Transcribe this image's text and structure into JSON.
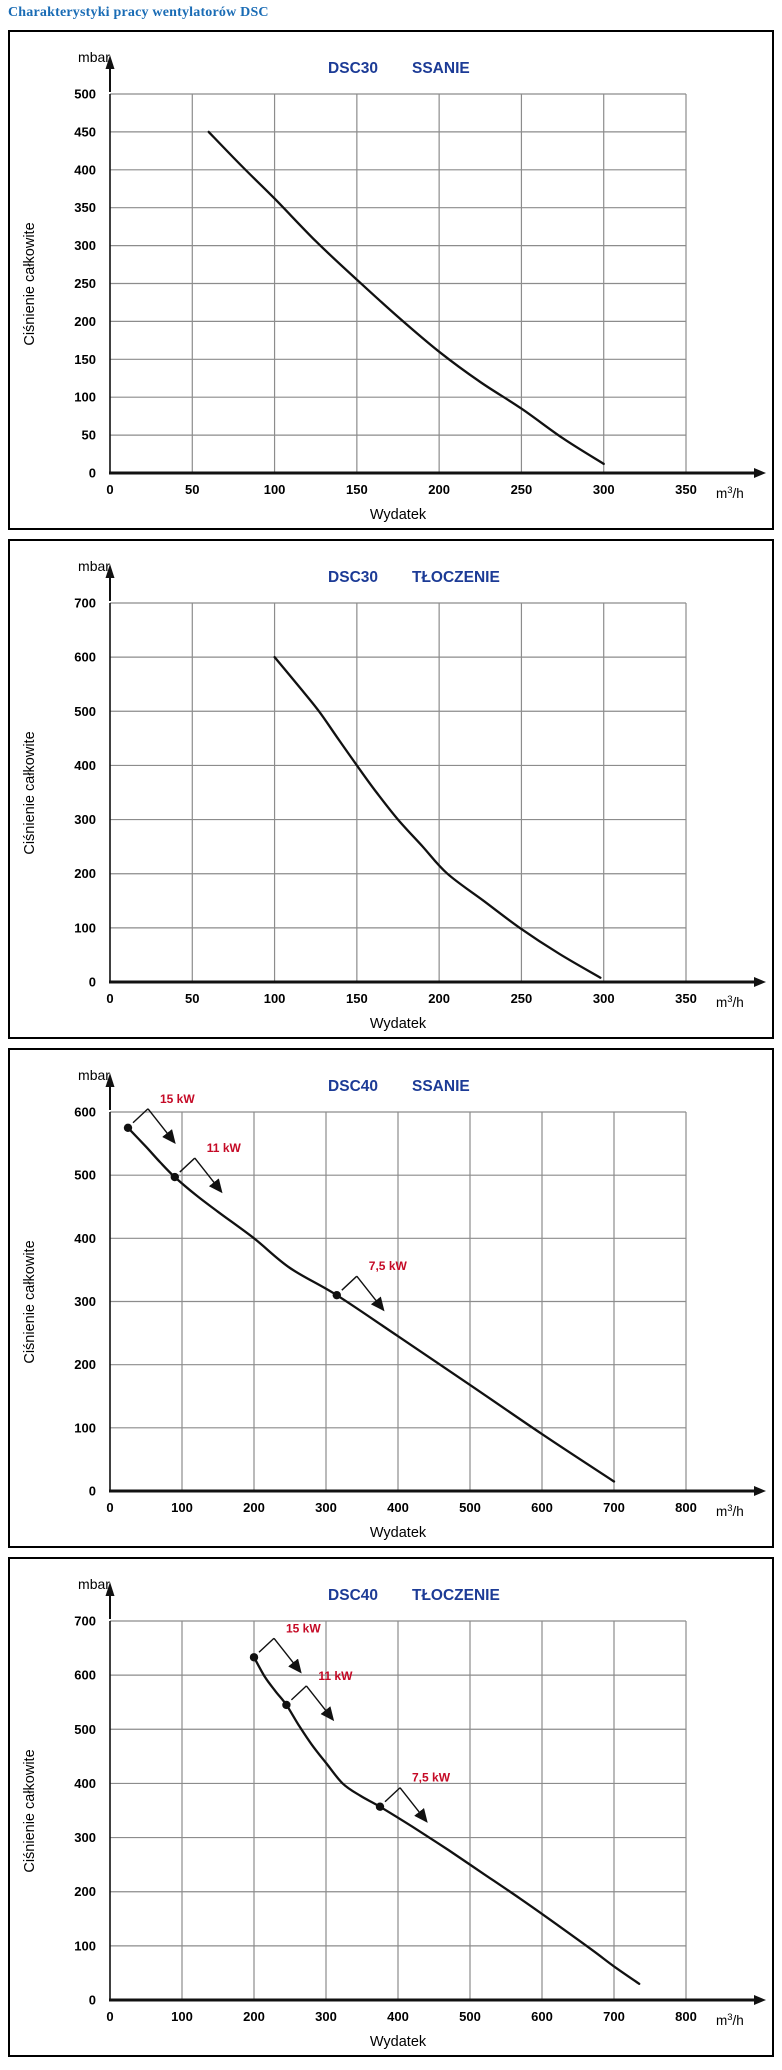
{
  "page_title": "Charakterystyki pracy wentylatorów DSC",
  "colors": {
    "page_title": "#1a6cb5",
    "chart_title": "#1c3b96",
    "annotation_label": "#c50a26",
    "grid": "#8c8c8c",
    "axis": "#111111",
    "curve": "#111111"
  },
  "chart_data": [
    {
      "type": "line",
      "model": "DSC30",
      "mode": "SSANIE",
      "y_unit": "mbar",
      "x_unit": "m³/h",
      "xlabel": "Wydatek",
      "ylabel": "Ciśnienie całkowite",
      "grid": true,
      "legend": "none",
      "xlim": [
        0,
        350
      ],
      "ylim": [
        0,
        500
      ],
      "x_ticks": [
        0,
        50,
        100,
        150,
        200,
        250,
        300,
        350
      ],
      "y_ticks": [
        0,
        50,
        100,
        150,
        200,
        250,
        300,
        350,
        400,
        450,
        500
      ],
      "curve": [
        [
          60,
          450
        ],
        [
          80,
          405
        ],
        [
          100,
          362
        ],
        [
          125,
          306
        ],
        [
          150,
          255
        ],
        [
          175,
          206
        ],
        [
          200,
          160
        ],
        [
          225,
          120
        ],
        [
          250,
          85
        ],
        [
          275,
          46
        ],
        [
          300,
          12
        ]
      ],
      "annotations": []
    },
    {
      "type": "line",
      "model": "DSC30",
      "mode": "TŁOCZENIE",
      "y_unit": "mbar",
      "x_unit": "m³/h",
      "xlabel": "Wydatek",
      "ylabel": "Ciśnienie całkowite",
      "grid": true,
      "legend": "none",
      "xlim": [
        0,
        350
      ],
      "ylim": [
        0,
        700
      ],
      "x_ticks": [
        0,
        50,
        100,
        150,
        200,
        250,
        300,
        350
      ],
      "y_ticks": [
        0,
        100,
        200,
        300,
        400,
        500,
        600,
        700
      ],
      "curve": [
        [
          100,
          600
        ],
        [
          115,
          545
        ],
        [
          127,
          500
        ],
        [
          138,
          452
        ],
        [
          150,
          400
        ],
        [
          162,
          350
        ],
        [
          175,
          300
        ],
        [
          190,
          250
        ],
        [
          205,
          200
        ],
        [
          227,
          150
        ],
        [
          249,
          100
        ],
        [
          273,
          52
        ],
        [
          298,
          8
        ]
      ],
      "annotations": []
    },
    {
      "type": "line",
      "model": "DSC40",
      "mode": "SSANIE",
      "y_unit": "mbar",
      "x_unit": "m³/h",
      "xlabel": "Wydatek",
      "ylabel": "Ciśnienie całkowite",
      "grid": true,
      "legend": "none",
      "xlim": [
        0,
        800
      ],
      "ylim": [
        0,
        600
      ],
      "x_ticks": [
        0,
        100,
        200,
        300,
        400,
        500,
        600,
        700,
        800
      ],
      "y_ticks": [
        0,
        100,
        200,
        300,
        400,
        500,
        600
      ],
      "curve": [
        [
          25,
          575
        ],
        [
          50,
          545
        ],
        [
          70,
          520
        ],
        [
          90,
          497
        ],
        [
          120,
          468
        ],
        [
          150,
          442
        ],
        [
          200,
          400
        ],
        [
          250,
          353
        ],
        [
          315,
          310
        ],
        [
          400,
          245
        ],
        [
          500,
          168
        ],
        [
          600,
          90
        ],
        [
          700,
          15
        ]
      ],
      "annotations": [
        {
          "label": "15 kW",
          "x": 25,
          "y": 575
        },
        {
          "label": "11 kW",
          "x": 90,
          "y": 497
        },
        {
          "label": "7,5 kW",
          "x": 315,
          "y": 310
        }
      ]
    },
    {
      "type": "line",
      "model": "DSC40",
      "mode": "TŁOCZENIE",
      "y_unit": "mbar",
      "x_unit": "m³/h",
      "xlabel": "Wydatek",
      "ylabel": "Ciśnienie całkowite",
      "grid": true,
      "legend": "none",
      "xlim": [
        0,
        800
      ],
      "ylim": [
        0,
        700
      ],
      "x_ticks": [
        0,
        100,
        200,
        300,
        400,
        500,
        600,
        700,
        800
      ],
      "y_ticks": [
        0,
        100,
        200,
        300,
        400,
        500,
        600,
        700
      ],
      "curve": [
        [
          200,
          633
        ],
        [
          215,
          597
        ],
        [
          230,
          570
        ],
        [
          245,
          545
        ],
        [
          262,
          508
        ],
        [
          280,
          472
        ],
        [
          300,
          438
        ],
        [
          323,
          400
        ],
        [
          348,
          377
        ],
        [
          375,
          357
        ],
        [
          420,
          320
        ],
        [
          470,
          277
        ],
        [
          520,
          232
        ],
        [
          570,
          187
        ],
        [
          620,
          140
        ],
        [
          670,
          92
        ],
        [
          700,
          62
        ],
        [
          735,
          30
        ]
      ],
      "annotations": [
        {
          "label": "15 kW",
          "x": 200,
          "y": 633
        },
        {
          "label": "11 kW",
          "x": 245,
          "y": 545
        },
        {
          "label": "7,5 kW",
          "x": 375,
          "y": 357
        }
      ]
    }
  ]
}
